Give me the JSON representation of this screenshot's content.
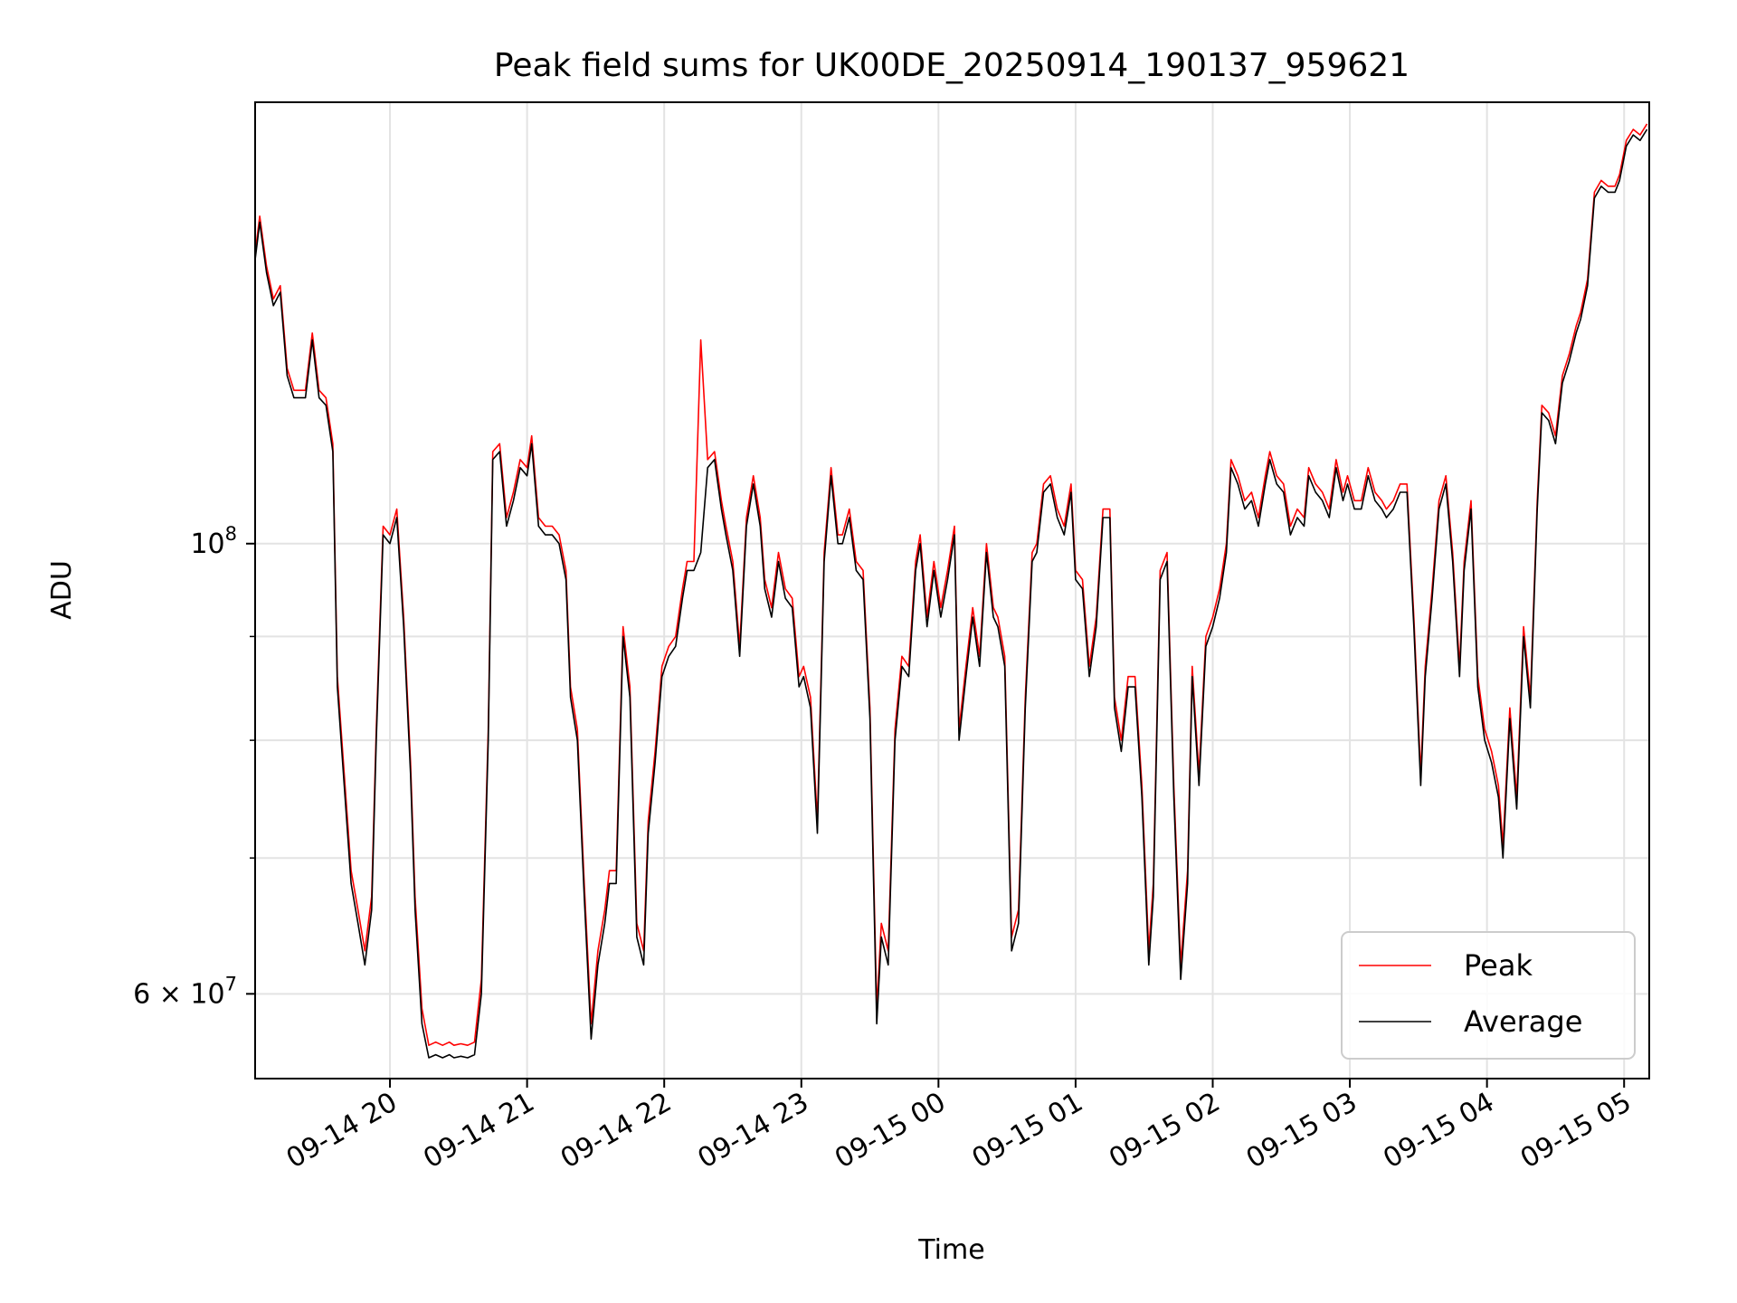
{
  "chart_data": {
    "type": "line",
    "title": "Peak field sums for UK00DE_20250914_190137_959621",
    "xlabel": "Time",
    "ylabel": "ADU",
    "y_scale": "log",
    "ylim": [
      54500000,
      165000000
    ],
    "xlim": [
      "2025-09-14 19:01",
      "2025-09-15 05:11"
    ],
    "x_ticks": [
      "09-14 20",
      "09-14 21",
      "09-14 22",
      "09-14 23",
      "09-15 00",
      "09-15 01",
      "09-15 02",
      "09-15 03",
      "09-15 04",
      "09-15 05"
    ],
    "y_tick_labels": [
      {
        "value": 60000000,
        "base": "6 × 10",
        "exponent": "7"
      },
      {
        "value": 100000000,
        "base": "10",
        "exponent": "8"
      }
    ],
    "y_minor_ticks": [
      70000000,
      80000000,
      90000000
    ],
    "grid": true,
    "legend_position": "lower-right",
    "series": [
      {
        "name": "Peak",
        "color": "#ff0000"
      },
      {
        "name": "Average",
        "color": "#000000"
      }
    ],
    "x": [
      "2025-09-14 19:01",
      "2025-09-14 19:03",
      "2025-09-14 19:06",
      "2025-09-14 19:09",
      "2025-09-14 19:12",
      "2025-09-14 19:15",
      "2025-09-14 19:18",
      "2025-09-14 19:20",
      "2025-09-14 19:23",
      "2025-09-14 19:26",
      "2025-09-14 19:29",
      "2025-09-14 19:32",
      "2025-09-14 19:35",
      "2025-09-14 19:37",
      "2025-09-14 19:40",
      "2025-09-14 19:43",
      "2025-09-14 19:46",
      "2025-09-14 19:49",
      "2025-09-14 19:52",
      "2025-09-14 19:54",
      "2025-09-14 19:57",
      "2025-09-14 20:00",
      "2025-09-14 20:03",
      "2025-09-14 20:06",
      "2025-09-14 20:09",
      "2025-09-14 20:11",
      "2025-09-14 20:14",
      "2025-09-14 20:17",
      "2025-09-14 20:20",
      "2025-09-14 20:23",
      "2025-09-14 20:26",
      "2025-09-14 20:28",
      "2025-09-14 20:31",
      "2025-09-14 20:34",
      "2025-09-14 20:37",
      "2025-09-14 20:40",
      "2025-09-14 20:43",
      "2025-09-14 20:45",
      "2025-09-14 20:48",
      "2025-09-14 20:51",
      "2025-09-14 20:54",
      "2025-09-14 20:57",
      "2025-09-14 21:00",
      "2025-09-14 21:02",
      "2025-09-14 21:05",
      "2025-09-14 21:08",
      "2025-09-14 21:11",
      "2025-09-14 21:14",
      "2025-09-14 21:17",
      "2025-09-14 21:19",
      "2025-09-14 21:22",
      "2025-09-14 21:25",
      "2025-09-14 21:28",
      "2025-09-14 21:31",
      "2025-09-14 21:34",
      "2025-09-14 21:36",
      "2025-09-14 21:39",
      "2025-09-14 21:42",
      "2025-09-14 21:45",
      "2025-09-14 21:48",
      "2025-09-14 21:51",
      "2025-09-14 21:53",
      "2025-09-14 21:56",
      "2025-09-14 21:59",
      "2025-09-14 22:02",
      "2025-09-14 22:05",
      "2025-09-14 22:08",
      "2025-09-14 22:10",
      "2025-09-14 22:13",
      "2025-09-14 22:16",
      "2025-09-14 22:19",
      "2025-09-14 22:22",
      "2025-09-14 22:25",
      "2025-09-14 22:27",
      "2025-09-14 22:30",
      "2025-09-14 22:33",
      "2025-09-14 22:36",
      "2025-09-14 22:39",
      "2025-09-14 22:42",
      "2025-09-14 22:44",
      "2025-09-14 22:47",
      "2025-09-14 22:50",
      "2025-09-14 22:53",
      "2025-09-14 22:56",
      "2025-09-14 22:59",
      "2025-09-14 23:01",
      "2025-09-14 23:04",
      "2025-09-14 23:07",
      "2025-09-14 23:10",
      "2025-09-14 23:13",
      "2025-09-14 23:16",
      "2025-09-14 23:18",
      "2025-09-14 23:21",
      "2025-09-14 23:24",
      "2025-09-14 23:27",
      "2025-09-14 23:30",
      "2025-09-14 23:33",
      "2025-09-14 23:35",
      "2025-09-14 23:38",
      "2025-09-14 23:41",
      "2025-09-14 23:44",
      "2025-09-14 23:47",
      "2025-09-14 23:50",
      "2025-09-14 23:52",
      "2025-09-14 23:55",
      "2025-09-14 23:58",
      "2025-09-15 00:01",
      "2025-09-15 00:04",
      "2025-09-15 00:07",
      "2025-09-15 00:09",
      "2025-09-15 00:12",
      "2025-09-15 00:15",
      "2025-09-15 00:18",
      "2025-09-15 00:21",
      "2025-09-15 00:24",
      "2025-09-15 00:26",
      "2025-09-15 00:29",
      "2025-09-15 00:32",
      "2025-09-15 00:35",
      "2025-09-15 00:38",
      "2025-09-15 00:41",
      "2025-09-15 00:43",
      "2025-09-15 00:46",
      "2025-09-15 00:49",
      "2025-09-15 00:52",
      "2025-09-15 00:55",
      "2025-09-15 00:58",
      "2025-09-15 01:00",
      "2025-09-15 01:03",
      "2025-09-15 01:06",
      "2025-09-15 01:09",
      "2025-09-15 01:12",
      "2025-09-15 01:15",
      "2025-09-15 01:17",
      "2025-09-15 01:20",
      "2025-09-15 01:23",
      "2025-09-15 01:26",
      "2025-09-15 01:29",
      "2025-09-15 01:32",
      "2025-09-15 01:34",
      "2025-09-15 01:37",
      "2025-09-15 01:40",
      "2025-09-15 01:43",
      "2025-09-15 01:46",
      "2025-09-15 01:49",
      "2025-09-15 01:51",
      "2025-09-15 01:54",
      "2025-09-15 01:57",
      "2025-09-15 02:00",
      "2025-09-15 02:03",
      "2025-09-15 02:06",
      "2025-09-15 02:08",
      "2025-09-15 02:11",
      "2025-09-15 02:14",
      "2025-09-15 02:17",
      "2025-09-15 02:20",
      "2025-09-15 02:23",
      "2025-09-15 02:25",
      "2025-09-15 02:28",
      "2025-09-15 02:31",
      "2025-09-15 02:34",
      "2025-09-15 02:37",
      "2025-09-15 02:40",
      "2025-09-15 02:42",
      "2025-09-15 02:45",
      "2025-09-15 02:48",
      "2025-09-15 02:51",
      "2025-09-15 02:54",
      "2025-09-15 02:57",
      "2025-09-15 02:59",
      "2025-09-15 03:02",
      "2025-09-15 03:05",
      "2025-09-15 03:08",
      "2025-09-15 03:11",
      "2025-09-15 03:14",
      "2025-09-15 03:16",
      "2025-09-15 03:19",
      "2025-09-15 03:22",
      "2025-09-15 03:25",
      "2025-09-15 03:28",
      "2025-09-15 03:31",
      "2025-09-15 03:33",
      "2025-09-15 03:36",
      "2025-09-15 03:39",
      "2025-09-15 03:42",
      "2025-09-15 03:45",
      "2025-09-15 03:48",
      "2025-09-15 03:50",
      "2025-09-15 03:53",
      "2025-09-15 03:56",
      "2025-09-15 03:59",
      "2025-09-15 04:02",
      "2025-09-15 04:05",
      "2025-09-15 04:07",
      "2025-09-15 04:10",
      "2025-09-15 04:13",
      "2025-09-15 04:16",
      "2025-09-15 04:19",
      "2025-09-15 04:22",
      "2025-09-15 04:24",
      "2025-09-15 04:27",
      "2025-09-15 04:30",
      "2025-09-15 04:33",
      "2025-09-15 04:36",
      "2025-09-15 04:39",
      "2025-09-15 04:41",
      "2025-09-15 04:44",
      "2025-09-15 04:47",
      "2025-09-15 04:50",
      "2025-09-15 04:53",
      "2025-09-15 04:56",
      "2025-09-15 04:58",
      "2025-09-15 05:01",
      "2025-09-15 05:04",
      "2025-09-15 05:07",
      "2025-09-15 05:10"
    ],
    "average": [
      138000000,
      144000000,
      136000000,
      131000000,
      133000000,
      121000000,
      118000000,
      118000000,
      118000000,
      126000000,
      118000000,
      117000000,
      111000000,
      85000000,
      76000000,
      68000000,
      65000000,
      62000000,
      66000000,
      80000000,
      101000000,
      100000000,
      103000000,
      91000000,
      77000000,
      66000000,
      58000000,
      55800000,
      56000000,
      55800000,
      56000000,
      55800000,
      55900000,
      55800000,
      56000000,
      60000000,
      80000000,
      110000000,
      111000000,
      102000000,
      105000000,
      109000000,
      108000000,
      112000000,
      102000000,
      101000000,
      101000000,
      100000000,
      96000000,
      84000000,
      80000000,
      67000000,
      57000000,
      62000000,
      65000000,
      68000000,
      68000000,
      90000000,
      84000000,
      64000000,
      62000000,
      72000000,
      78000000,
      86000000,
      88000000,
      89000000,
      94000000,
      97000000,
      97000000,
      99000000,
      109000000,
      110000000,
      104000000,
      101000000,
      97000000,
      88000000,
      102000000,
      107000000,
      102000000,
      95000000,
      92000000,
      98000000,
      94000000,
      93000000,
      85000000,
      86000000,
      83000000,
      72000000,
      98000000,
      108000000,
      100000000,
      100000000,
      103000000,
      97000000,
      96000000,
      82000000,
      58000000,
      64000000,
      62000000,
      80000000,
      87000000,
      86000000,
      97000000,
      100000000,
      91000000,
      97000000,
      92000000,
      96000000,
      101000000,
      80000000,
      86000000,
      92000000,
      87000000,
      99000000,
      92000000,
      91000000,
      87000000,
      63000000,
      65000000,
      83000000,
      98000000,
      99000000,
      106000000,
      107000000,
      103000000,
      101000000,
      106000000,
      96000000,
      95000000,
      86000000,
      91000000,
      103000000,
      103000000,
      83000000,
      79000000,
      85000000,
      85000000,
      75000000,
      62000000,
      67000000,
      96000000,
      98000000,
      75000000,
      61000000,
      68000000,
      86000000,
      76000000,
      89000000,
      91000000,
      94000000,
      99000000,
      109000000,
      107000000,
      104000000,
      105000000,
      102000000,
      107000000,
      110000000,
      107000000,
      106000000,
      101000000,
      103000000,
      102000000,
      108000000,
      106000000,
      105000000,
      103000000,
      109000000,
      105000000,
      107000000,
      104000000,
      104000000,
      108000000,
      105000000,
      104000000,
      103000000,
      104000000,
      106000000,
      106000000,
      91000000,
      76000000,
      86000000,
      94000000,
      104000000,
      107000000,
      98000000,
      86000000,
      97000000,
      104000000,
      85000000,
      80000000,
      78000000,
      75000000,
      70000000,
      82000000,
      74000000,
      90000000,
      83000000,
      104000000,
      116000000,
      115000000,
      112000000,
      120000000,
      123000000,
      127000000,
      129000000,
      134000000,
      148000000,
      150000000,
      149000000,
      149000000,
      151000000,
      157000000,
      159000000,
      158000000,
      160000000,
      161000000
    ],
    "peak": [
      139000000,
      145000000,
      137000000,
      132000000,
      134000000,
      122000000,
      119000000,
      119000000,
      119000000,
      127000000,
      119000000,
      118000000,
      112000000,
      86000000,
      77000000,
      69000000,
      66000000,
      63000000,
      67000000,
      81000000,
      102000000,
      101000000,
      104000000,
      92000000,
      78000000,
      67000000,
      59000000,
      56600000,
      56800000,
      56600000,
      56800000,
      56600000,
      56700000,
      56600000,
      56800000,
      61000000,
      81000000,
      111000000,
      112000000,
      103000000,
      106000000,
      110000000,
      109000000,
      113000000,
      103000000,
      102000000,
      102000000,
      101000000,
      97000000,
      85000000,
      81000000,
      68000000,
      58000000,
      63000000,
      66000000,
      69000000,
      69000000,
      91000000,
      85000000,
      65000000,
      63000000,
      73000000,
      79000000,
      87000000,
      89000000,
      90000000,
      95000000,
      98000000,
      98000000,
      126000000,
      110000000,
      111000000,
      105000000,
      102000000,
      98000000,
      89000000,
      103000000,
      108000000,
      103000000,
      96000000,
      93000000,
      99000000,
      95000000,
      94000000,
      86000000,
      87000000,
      84000000,
      73000000,
      99000000,
      109000000,
      101000000,
      101000000,
      104000000,
      98000000,
      97000000,
      83000000,
      59000000,
      65000000,
      63000000,
      81000000,
      88000000,
      87000000,
      98000000,
      101000000,
      92000000,
      98000000,
      93000000,
      97000000,
      102000000,
      81000000,
      87000000,
      93000000,
      88000000,
      100000000,
      93000000,
      92000000,
      88000000,
      64000000,
      66000000,
      84000000,
      99000000,
      100000000,
      107000000,
      108000000,
      104000000,
      102000000,
      107000000,
      97000000,
      96000000,
      87000000,
      92000000,
      104000000,
      104000000,
      84000000,
      80000000,
      86000000,
      86000000,
      76000000,
      63000000,
      68000000,
      97000000,
      99000000,
      76000000,
      62000000,
      69000000,
      87000000,
      77000000,
      90000000,
      92000000,
      95000000,
      100000000,
      110000000,
      108000000,
      105000000,
      106000000,
      103000000,
      108000000,
      111000000,
      108000000,
      107000000,
      102000000,
      104000000,
      103000000,
      109000000,
      107000000,
      106000000,
      104000000,
      110000000,
      106000000,
      108000000,
      105000000,
      105000000,
      109000000,
      106000000,
      105000000,
      104000000,
      105000000,
      107000000,
      107000000,
      92000000,
      77000000,
      87000000,
      95000000,
      105000000,
      108000000,
      99000000,
      87000000,
      98000000,
      105000000,
      86000000,
      81000000,
      79000000,
      76000000,
      71000000,
      83000000,
      75000000,
      91000000,
      84000000,
      105000000,
      117000000,
      116000000,
      113000000,
      121000000,
      124000000,
      128000000,
      130000000,
      135000000,
      149000000,
      151000000,
      150000000,
      150000000,
      152000000,
      158000000,
      160000000,
      159000000,
      161000000,
      162000000
    ]
  }
}
